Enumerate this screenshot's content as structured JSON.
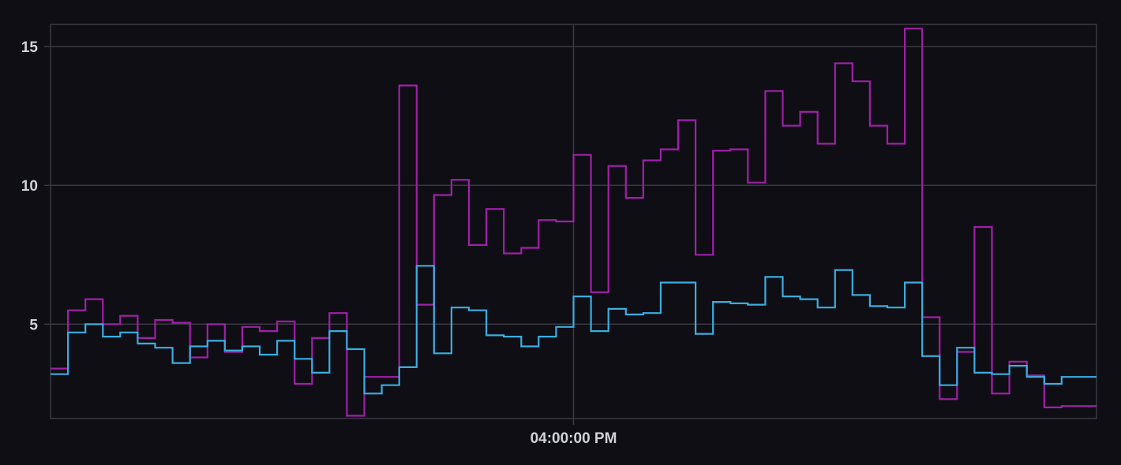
{
  "chart_data": {
    "type": "line",
    "step": true,
    "title": "",
    "xlabel": "",
    "ylabel": "",
    "ylim": [
      1.6,
      15.8
    ],
    "y_ticks": [
      5,
      10,
      15
    ],
    "y_tick_labels": [
      "5",
      "10",
      "15"
    ],
    "x_tick_labels": [
      "04:00:00 PM"
    ],
    "grid": true,
    "legend": "none",
    "background": "#0f0e15",
    "x": [
      0,
      1,
      2,
      3,
      4,
      5,
      6,
      7,
      8,
      9,
      10,
      11,
      12,
      13,
      14,
      15,
      16,
      17,
      18,
      19,
      20,
      21,
      22,
      23,
      24,
      25,
      26,
      27,
      28,
      29,
      30,
      31,
      32,
      33,
      34,
      35,
      36,
      37,
      38,
      39,
      40,
      41,
      42,
      43,
      44,
      45,
      46,
      47,
      48,
      49,
      50,
      51,
      52,
      53,
      54,
      55,
      56,
      57,
      58,
      59
    ],
    "x_tick_positions": [
      30
    ],
    "series": [
      {
        "color": "#a020a8",
        "values": [
          3.4,
          5.5,
          5.9,
          5.0,
          5.3,
          4.5,
          5.15,
          5.05,
          3.8,
          5.0,
          4.0,
          4.9,
          4.75,
          5.1,
          2.85,
          4.5,
          5.4,
          1.7,
          3.1,
          3.1,
          13.6,
          5.7,
          9.65,
          10.2,
          7.85,
          9.15,
          7.55,
          7.75,
          8.75,
          8.7,
          11.1,
          6.15,
          10.7,
          9.55,
          10.9,
          11.3,
          12.35,
          7.5,
          11.25,
          11.3,
          10.1,
          13.4,
          12.15,
          12.65,
          11.5,
          14.4,
          13.75,
          12.15,
          11.5,
          15.65,
          5.25,
          2.3,
          4.0,
          8.5,
          2.5,
          3.65,
          3.15,
          2.0,
          2.05,
          2.05
        ]
      },
      {
        "color": "#3aaee0",
        "values": [
          3.2,
          4.7,
          5.0,
          4.55,
          4.7,
          4.3,
          4.15,
          3.6,
          4.2,
          4.4,
          4.05,
          4.2,
          3.9,
          4.4,
          3.75,
          3.25,
          4.75,
          4.1,
          2.5,
          2.8,
          3.45,
          7.1,
          3.95,
          5.6,
          5.5,
          4.6,
          4.55,
          4.2,
          4.55,
          4.9,
          6.0,
          4.75,
          5.55,
          5.35,
          5.4,
          6.5,
          6.5,
          4.65,
          5.8,
          5.75,
          5.7,
          6.7,
          6.0,
          5.9,
          5.6,
          6.95,
          6.05,
          5.65,
          5.6,
          6.5,
          3.85,
          2.8,
          4.15,
          3.25,
          3.2,
          3.5,
          3.1,
          2.85,
          3.1,
          3.1
        ]
      }
    ]
  }
}
